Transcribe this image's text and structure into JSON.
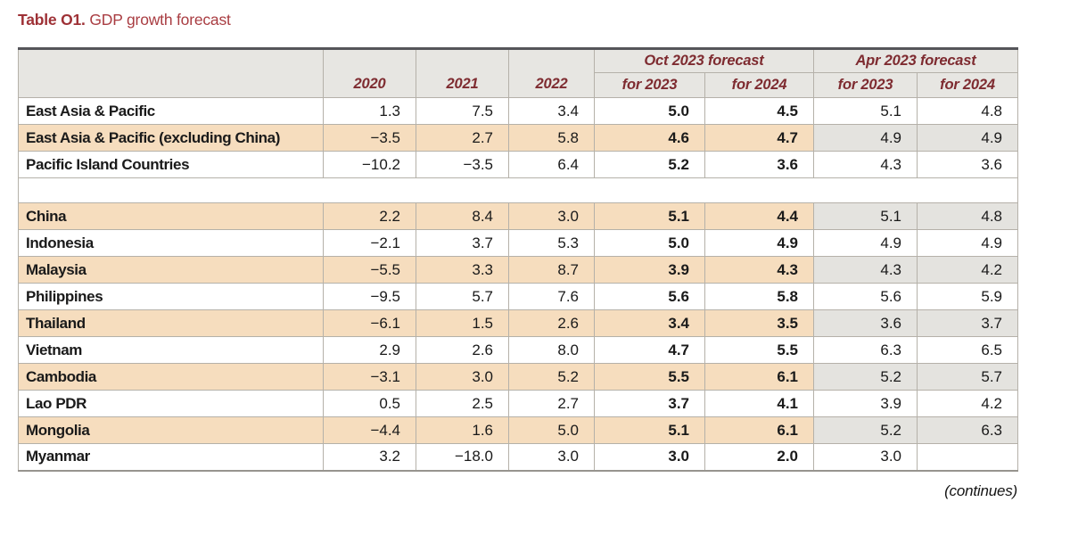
{
  "title": {
    "label": "Table O1.",
    "text": "GDP growth forecast"
  },
  "colors": {
    "title_maroon": "#9e3136",
    "header_maroon": "#7e2b30",
    "header_bg": "#e7e6e2",
    "row_highlight_peach": "#f6ddbe",
    "apr_column_gray": "#e4e3df"
  },
  "table": {
    "col_headers": {
      "years": [
        "2020",
        "2021",
        "2022"
      ],
      "groups": [
        {
          "label": "Oct 2023 forecast",
          "sub": [
            "for 2023",
            "for 2024"
          ]
        },
        {
          "label": "Apr 2023 forecast",
          "sub": [
            "for 2023",
            "for 2024"
          ]
        }
      ]
    },
    "rows": [
      {
        "label": "East Asia & Pacific",
        "values": [
          "1.3",
          "7.5",
          "3.4",
          "5.0",
          "4.5",
          "5.1",
          "4.8"
        ]
      },
      {
        "label": "East Asia & Pacific (excluding China)",
        "values": [
          "−3.5",
          "2.7",
          "5.8",
          "4.6",
          "4.7",
          "4.9",
          "4.9"
        ]
      },
      {
        "label": "Pacific Island Countries",
        "values": [
          "−10.2",
          "−3.5",
          "6.4",
          "5.2",
          "3.6",
          "4.3",
          "3.6"
        ]
      },
      {
        "label": "China",
        "values": [
          "2.2",
          "8.4",
          "3.0",
          "5.1",
          "4.4",
          "5.1",
          "4.8"
        ]
      },
      {
        "label": "Indonesia",
        "values": [
          "−2.1",
          "3.7",
          "5.3",
          "5.0",
          "4.9",
          "4.9",
          "4.9"
        ]
      },
      {
        "label": "Malaysia",
        "values": [
          "−5.5",
          "3.3",
          "8.7",
          "3.9",
          "4.3",
          "4.3",
          "4.2"
        ]
      },
      {
        "label": "Philippines",
        "values": [
          "−9.5",
          "5.7",
          "7.6",
          "5.6",
          "5.8",
          "5.6",
          "5.9"
        ]
      },
      {
        "label": "Thailand",
        "values": [
          "−6.1",
          "1.5",
          "2.6",
          "3.4",
          "3.5",
          "3.6",
          "3.7"
        ]
      },
      {
        "label": "Vietnam",
        "values": [
          "2.9",
          "2.6",
          "8.0",
          "4.7",
          "5.5",
          "6.3",
          "6.5"
        ]
      },
      {
        "label": "Cambodia",
        "values": [
          "−3.1",
          "3.0",
          "5.2",
          "5.5",
          "6.1",
          "5.2",
          "5.7"
        ]
      },
      {
        "label": "Lao PDR",
        "values": [
          "0.5",
          "2.5",
          "2.7",
          "3.7",
          "4.1",
          "3.9",
          "4.2"
        ]
      },
      {
        "label": "Mongolia",
        "values": [
          "−4.4",
          "1.6",
          "5.0",
          "5.1",
          "6.1",
          "5.2",
          "6.3"
        ]
      },
      {
        "label": "Myanmar",
        "values": [
          "3.2",
          "−18.0",
          "3.0",
          "3.0",
          "2.0",
          "3.0",
          ""
        ]
      }
    ]
  },
  "footer": {
    "continues": "(continues)"
  }
}
